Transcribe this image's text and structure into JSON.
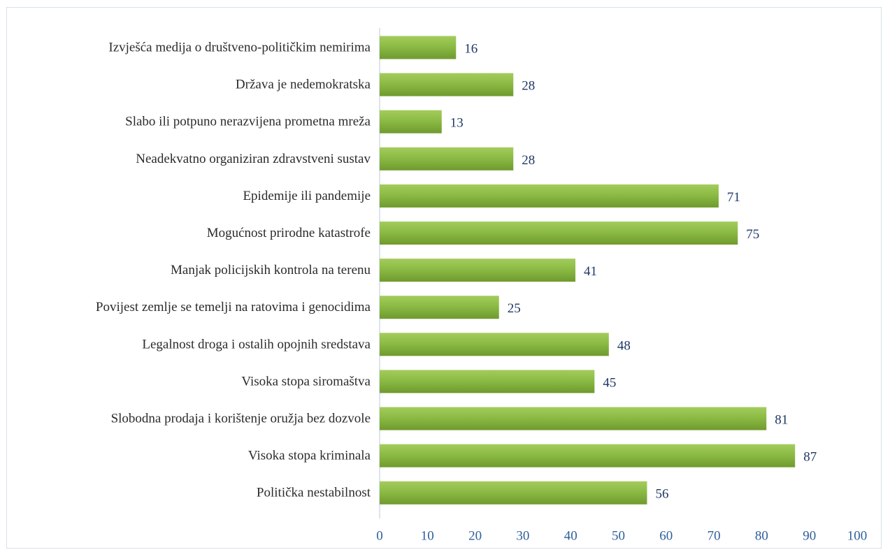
{
  "chart_data": {
    "type": "bar",
    "orientation": "horizontal",
    "categories": [
      "Izvješća medija o  društveno-političkim nemirima",
      "Država je nedemokratska",
      "Slabo ili potpuno nerazvijena prometna mreža",
      "Neadekvatno organiziran zdravstveni sustav",
      "Epidemije ili pandemije",
      "Mogućnost prirodne katastrofe",
      "Manjak policijskih kontrola na terenu",
      "Povijest zemlje se temelji na ratovima i genocidima",
      "Legalnost droga i ostalih opojnih sredstava",
      "Visoka stopa siromaštva",
      "Slobodna prodaja i korištenje oružja bez dozvole",
      "Visoka stopa kriminala",
      "Politička nestabilnost"
    ],
    "values": [
      16,
      28,
      13,
      28,
      71,
      75,
      41,
      25,
      48,
      45,
      81,
      87,
      56
    ],
    "xlim": [
      0,
      100
    ],
    "xticks": [
      0,
      10,
      20,
      30,
      40,
      50,
      60,
      70,
      80,
      90,
      100
    ],
    "grid": false,
    "legend": "none",
    "bar_color_light": "#a4cc5c",
    "bar_color_dark": "#6f9a2e",
    "value_label_color": "#1f3864",
    "tick_label_color": "#2e5f9a"
  }
}
